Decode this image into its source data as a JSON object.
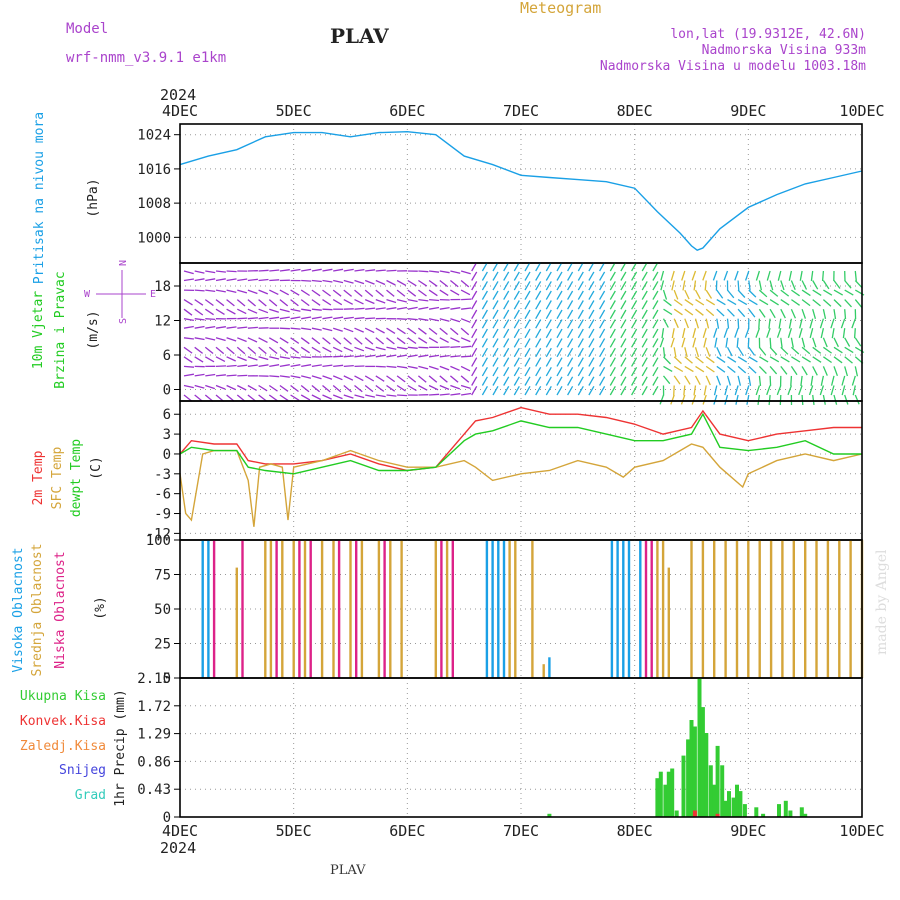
{
  "header": {
    "model_label": "Model",
    "model_name": "wrf-nmm_v3.9.1 e1km",
    "station": "PLAV",
    "title": "Meteogram",
    "lonlat": "lon,lat (19.9312E, 42.6N)",
    "elevation": "Nadmorska Visina 933m",
    "model_elevation": "Nadmorska Visina u modelu 1003.18m",
    "footer_station": "PLAV",
    "credit": "made by Angel"
  },
  "colors": {
    "pressure": "#1aa0e6",
    "temp2m": "#ee3333",
    "sfc": "#d4a53a",
    "dew": "#22cc22",
    "high_cloud": "#1aa0e6",
    "mid_cloud": "#d4a53a",
    "low_cloud": "#dd2288",
    "precip_total": "#33cc33",
    "precip_conv": "#ee3333",
    "purple": "#aa44cc",
    "wind_low": "#9933cc",
    "wind_mid": "#22aadd",
    "wind_high": "#33cc66",
    "wind_max": "#ddbb33"
  },
  "chart_data": {
    "type": "line",
    "time_axis": {
      "year": "2024",
      "ticks": [
        "4DEC",
        "5DEC",
        "6DEC",
        "7DEC",
        "8DEC",
        "9DEC",
        "10DEC"
      ],
      "range_days": [
        0,
        6
      ]
    },
    "panels": [
      {
        "id": "pressure",
        "type": "line",
        "ylabel": [
          "Pritisak na nivou mora",
          "(hPa)"
        ],
        "yticks": [
          1000,
          1008,
          1016,
          1024
        ],
        "ylim": [
          994,
          1026.5
        ],
        "series": [
          {
            "name": "Pritisak na nivou mora",
            "x": [
              0,
              0.25,
              0.5,
              0.75,
              1.0,
              1.25,
              1.5,
              1.75,
              2.0,
              2.25,
              2.5,
              2.75,
              3.0,
              3.25,
              3.5,
              3.75,
              4.0,
              4.2,
              4.4,
              4.5,
              4.55,
              4.6,
              4.75,
              5.0,
              5.25,
              5.5,
              5.75,
              6.0
            ],
            "values": [
              1017,
              1019,
              1020.5,
              1023.5,
              1024.5,
              1024.5,
              1023.5,
              1024.5,
              1024.7,
              1024,
              1019,
              1017,
              1014.5,
              1014,
              1013.5,
              1013,
              1011.5,
              1006,
              1001,
              998,
              997,
              997.5,
              1002,
              1007,
              1010,
              1012.5,
              1014,
              1015.5
            ]
          }
        ]
      },
      {
        "id": "wind",
        "type": "scatter",
        "ylabel": [
          "10m Vjetar",
          "Brzina i Pravac",
          "(m/s)"
        ],
        "compass": {
          "north": "N",
          "south": "S",
          "east": "E",
          "west": "W"
        },
        "yticks": [
          0,
          6,
          12,
          18
        ],
        "ylim": [
          -2,
          22
        ]
      },
      {
        "id": "temperature",
        "type": "line",
        "ylabel": [
          "2m Temp",
          "SFC Temp",
          "dewpt Temp",
          "(C)"
        ],
        "yticks": [
          -12,
          -9,
          -6,
          -3,
          0,
          3,
          6
        ],
        "ylim": [
          -13,
          8
        ],
        "series": [
          {
            "name": "2m Temp",
            "x": [
              0,
              0.1,
              0.3,
              0.5,
              0.6,
              0.75,
              1.0,
              1.25,
              1.5,
              1.75,
              2.0,
              2.25,
              2.5,
              2.6,
              2.75,
              3.0,
              3.25,
              3.5,
              3.75,
              4.0,
              4.25,
              4.5,
              4.6,
              4.75,
              5.0,
              5.25,
              5.5,
              5.75,
              6.0
            ],
            "values": [
              0,
              2,
              1.5,
              1.5,
              -1,
              -1.5,
              -1.5,
              -1,
              0,
              -1.5,
              -2.5,
              -2,
              3,
              5,
              5.5,
              7,
              6,
              6,
              5.5,
              4.5,
              3,
              4,
              6.5,
              3,
              2,
              3,
              3.5,
              4,
              4
            ]
          },
          {
            "name": "SFC Temp",
            "x": [
              0,
              0.05,
              0.1,
              0.2,
              0.3,
              0.5,
              0.6,
              0.65,
              0.7,
              0.8,
              0.9,
              0.95,
              1.0,
              1.25,
              1.5,
              1.75,
              2.0,
              2.25,
              2.5,
              2.6,
              2.75,
              3.0,
              3.25,
              3.5,
              3.75,
              3.9,
              4.0,
              4.25,
              4.5,
              4.6,
              4.75,
              4.95,
              5.0,
              5.25,
              5.5,
              5.75,
              6.0
            ],
            "values": [
              -3,
              -9,
              -10,
              0,
              0.5,
              0.5,
              -4,
              -11,
              -2,
              -1.5,
              -2,
              -10,
              -2,
              -1,
              0.5,
              -1,
              -2,
              -2,
              -1,
              -2,
              -4,
              -3,
              -2.5,
              -1,
              -2,
              -3.5,
              -2,
              -1,
              1.5,
              1,
              -2,
              -5,
              -3,
              -1,
              0,
              -1,
              0
            ]
          },
          {
            "name": "dewpt Temp",
            "x": [
              0,
              0.1,
              0.3,
              0.5,
              0.6,
              0.75,
              1.0,
              1.25,
              1.5,
              1.75,
              2.0,
              2.25,
              2.5,
              2.6,
              2.75,
              3.0,
              3.25,
              3.5,
              3.75,
              4.0,
              4.25,
              4.5,
              4.6,
              4.75,
              5.0,
              5.25,
              5.5,
              5.75,
              6.0
            ],
            "values": [
              0,
              1,
              0.5,
              0.5,
              -2,
              -2.5,
              -3,
              -2,
              -1,
              -2.5,
              -2.5,
              -2,
              2,
              3,
              3.5,
              5,
              4,
              4,
              3,
              2,
              2,
              3,
              6,
              1,
              0.5,
              1,
              2,
              0,
              0
            ]
          }
        ]
      },
      {
        "id": "clouds",
        "type": "bar",
        "ylabel": [
          "Visoka Oblacnost",
          "Srednja Oblacnost",
          "Niska Oblacnost",
          "(%)"
        ],
        "yticks": [
          0,
          25,
          50,
          75,
          100
        ],
        "ylim": [
          0,
          100
        ],
        "series": [
          {
            "name": "Visoka Oblacnost",
            "x": [
              0.2,
              0.25,
              2.7,
              2.75,
              2.8,
              2.85,
              3.25,
              3.8,
              3.85,
              3.9,
              3.95,
              4.05
            ],
            "values": [
              100,
              100,
              100,
              100,
              100,
              100,
              15,
              100,
              100,
              100,
              100,
              100
            ]
          },
          {
            "name": "Srednja Oblacnost",
            "x": [
              0.5,
              0.75,
              0.8,
              0.9,
              1.0,
              1.1,
              1.25,
              1.35,
              1.5,
              1.6,
              1.75,
              1.85,
              1.95,
              2.25,
              2.35,
              2.9,
              2.95,
              3.1,
              3.2,
              4.2,
              4.25,
              4.3,
              4.5,
              4.6,
              4.7,
              4.8,
              4.9,
              5.0,
              5.1,
              5.2,
              5.3,
              5.4,
              5.5,
              5.6,
              5.7,
              5.8,
              5.9,
              6.0
            ],
            "values": [
              80,
              100,
              100,
              100,
              100,
              100,
              100,
              100,
              100,
              100,
              100,
              100,
              100,
              100,
              100,
              100,
              100,
              100,
              10,
              100,
              100,
              80,
              100,
              100,
              100,
              100,
              100,
              100,
              100,
              100,
              100,
              100,
              100,
              100,
              100,
              100,
              100,
              100
            ]
          },
          {
            "name": "Niska Oblacnost",
            "x": [
              0.3,
              0.55,
              0.85,
              1.05,
              1.15,
              1.4,
              1.55,
              1.8,
              2.3,
              2.4,
              4.1,
              4.15
            ],
            "values": [
              100,
              100,
              100,
              100,
              100,
              100,
              100,
              100,
              100,
              100,
              100,
              100
            ]
          }
        ]
      },
      {
        "id": "precip",
        "type": "bar",
        "ylabel": [
          "1hr Precip (mm)"
        ],
        "yticks": [
          0,
          0.43,
          0.86,
          1.29,
          1.72,
          2.15
        ],
        "ylim": [
          0,
          2.15
        ],
        "legend": [
          "Ukupna Kisa",
          "Konvek.Kisa",
          "Zaledj.Kisa",
          "Snijeg",
          "Grad"
        ],
        "series": [
          {
            "name": "Ukupna Kisa",
            "x": [
              3.25,
              4.2,
              4.23,
              4.27,
              4.3,
              4.33,
              4.37,
              4.43,
              4.47,
              4.5,
              4.53,
              4.57,
              4.6,
              4.63,
              4.67,
              4.7,
              4.73,
              4.77,
              4.8,
              4.83,
              4.87,
              4.9,
              4.93,
              4.97,
              5.07,
              5.13,
              5.27,
              5.33,
              5.37,
              5.47,
              5.5
            ],
            "values": [
              0.05,
              0.6,
              0.7,
              0.5,
              0.7,
              0.75,
              0.1,
              0.95,
              1.2,
              1.5,
              1.4,
              2.15,
              1.7,
              1.3,
              0.8,
              0.5,
              1.1,
              0.8,
              0.25,
              0.4,
              0.3,
              0.5,
              0.4,
              0.2,
              0.15,
              0.05,
              0.2,
              0.25,
              0.1,
              0.15,
              0.05
            ]
          },
          {
            "name": "Konvek.Kisa",
            "x": [
              4.53,
              4.73
            ],
            "values": [
              0.1,
              0.05
            ]
          }
        ]
      }
    ]
  }
}
